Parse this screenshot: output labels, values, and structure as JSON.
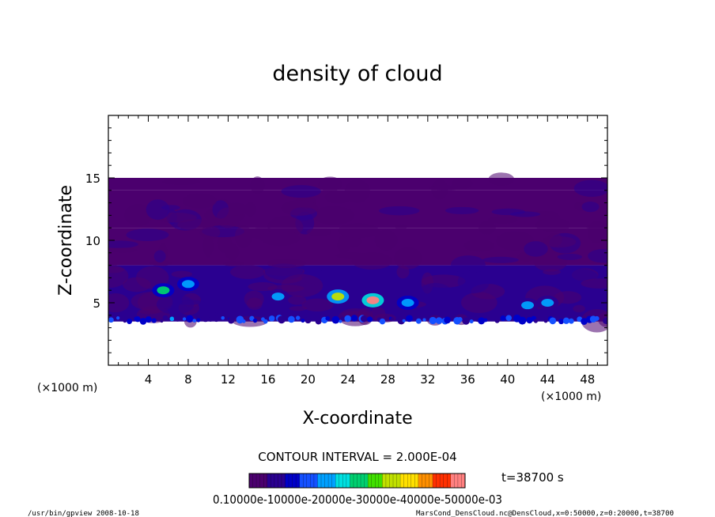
{
  "chart_data": {
    "type": "heatmap",
    "title": "density of cloud",
    "xlabel": "X-coordinate",
    "ylabel": "Z-coordinate",
    "x_unit": "(×1000 m)",
    "y_unit": "(×1000 m)",
    "xlim": [
      0,
      50
    ],
    "ylim": [
      0,
      20
    ],
    "x_ticks": [
      4,
      8,
      12,
      16,
      20,
      24,
      28,
      32,
      36,
      40,
      44,
      48
    ],
    "y_ticks": [
      5,
      10,
      15
    ],
    "cloud_layer_z_range": [
      3.5,
      15.0
    ],
    "field_rows": [
      {
        "z_from": 14.0,
        "z_to": 15.0,
        "level": 0.0001
      },
      {
        "z_from": 11.0,
        "z_to": 14.0,
        "level": 0.00018
      },
      {
        "z_from": 8.0,
        "z_to": 11.0,
        "level": 0.0003
      },
      {
        "z_from": 5.0,
        "z_to": 8.0,
        "level": 0.00045
      },
      {
        "z_from": 3.5,
        "z_to": 5.0,
        "level": 0.0004
      }
    ],
    "cells": [
      {
        "x": 5.5,
        "z": 6.0,
        "level": 0.0015
      },
      {
        "x": 8.0,
        "z": 6.5,
        "level": 0.0012
      },
      {
        "x": 17.0,
        "z": 5.5,
        "level": 0.001
      },
      {
        "x": 23.0,
        "z": 5.5,
        "level": 0.002
      },
      {
        "x": 26.5,
        "z": 5.2,
        "level": 0.0028
      },
      {
        "x": 30.0,
        "z": 5.0,
        "level": 0.0012
      },
      {
        "x": 42.0,
        "z": 4.8,
        "level": 0.001
      },
      {
        "x": 44.0,
        "z": 5.0,
        "level": 0.001
      }
    ],
    "contour_interval": "CONTOUR INTERVAL = 2.000E-04",
    "time_label": "t=38700 s",
    "colorbar": {
      "range": [
        0.0001,
        0.003
      ],
      "tick_labels": "0.10000e-10000e-20000e-30000e-40000e-50000e-03",
      "colors": [
        "#4b006e",
        "#2a0090",
        "#0000c8",
        "#1450ff",
        "#00a0ff",
        "#00e0e0",
        "#00d070",
        "#40e000",
        "#c0e000",
        "#ffe000",
        "#ff9000",
        "#ff3000",
        "#ff8080"
      ]
    }
  },
  "footer": {
    "left": "/usr/bin/gpview   2008-10-18",
    "right": "MarsCond_DensCloud.nc@DensCloud,x=0:50000,z=0:20000,t=38700"
  }
}
